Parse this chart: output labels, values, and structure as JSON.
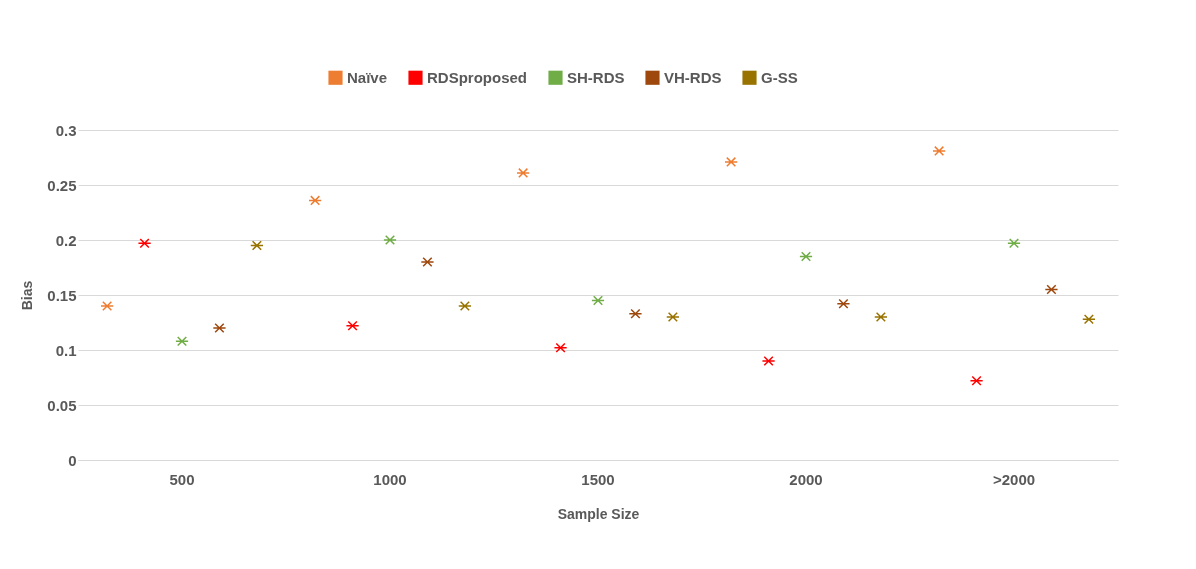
{
  "chart_data": {
    "type": "scatter",
    "xlabel": "Sample Size",
    "ylabel": "Bias",
    "categories": [
      "500",
      "1000",
      "1500",
      "2000",
      ">2000"
    ],
    "series": [
      {
        "name": "Naïve",
        "color": "#ed7d31",
        "values": [
          0.14,
          0.236,
          0.261,
          0.271,
          0.281
        ]
      },
      {
        "name": "RDSproposed",
        "color": "#ff0000",
        "values": [
          0.197,
          0.122,
          0.102,
          0.09,
          0.072
        ]
      },
      {
        "name": "SH-RDS",
        "color": "#70ad47",
        "values": [
          0.108,
          0.2,
          0.145,
          0.185,
          0.197
        ]
      },
      {
        "name": "VH-RDS",
        "color": "#9e480e",
        "values": [
          0.12,
          0.18,
          0.133,
          0.142,
          0.155
        ]
      },
      {
        "name": "G-SS",
        "color": "#997300",
        "values": [
          0.195,
          0.14,
          0.13,
          0.13,
          0.128
        ]
      }
    ],
    "ylim": [
      0,
      0.3
    ],
    "yticks": [
      0,
      0.05,
      0.1,
      0.15,
      0.2,
      0.25,
      0.3
    ],
    "grid": "y",
    "legend": "top",
    "marker": "cross"
  }
}
